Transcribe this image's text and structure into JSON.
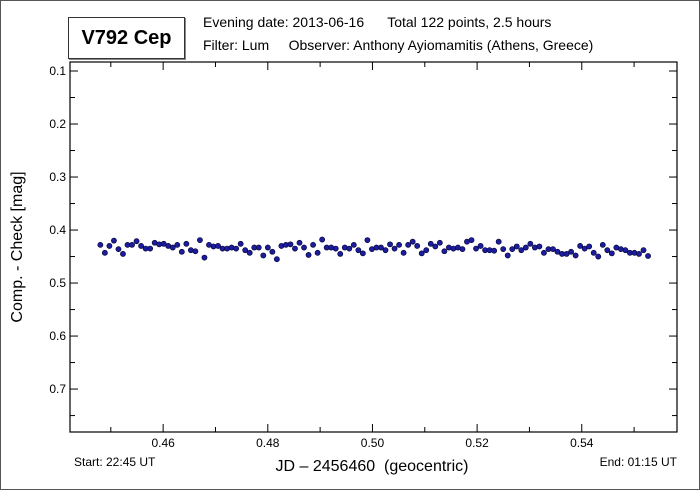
{
  "header": {
    "star_name": "V792 Cep",
    "line1": "Evening date: 2013-06-16      Total 122 points, 2.5 hours",
    "line2": "Filter: Lum     Observer: Anthony Ayiomamitis (Athens, Greece)",
    "start": "Start: 22:45 UT",
    "end": "End: 01:15 UT"
  },
  "colors": {
    "point": "#1c1c9c",
    "errorbar": "#e8a0a8",
    "axis": "#000000"
  },
  "chart_data": {
    "type": "scatter",
    "title": "V792 Cep",
    "xlabel": "JD – 2456460  (geocentric)",
    "ylabel": "Comp. - Check [mag]",
    "xlim": [
      0.4422,
      0.5582
    ],
    "ylim": [
      0.083,
      0.781
    ],
    "y_inverted": true,
    "grid": false,
    "x_ticks": [
      0.46,
      0.48,
      0.5,
      0.52,
      0.54
    ],
    "x_tick_labels": [
      "0.46",
      "0.48",
      "0.50",
      "0.52",
      "0.54"
    ],
    "y_ticks": [
      0.1,
      0.2,
      0.3,
      0.4,
      0.5,
      0.6,
      0.7
    ],
    "y_tick_labels": [
      "0.1",
      "0.2",
      "0.3",
      "0.4",
      "0.5",
      "0.6",
      "0.7"
    ],
    "x_start": 0.448,
    "x_step": 0.000865,
    "error": 0.005,
    "y": [
      0.428,
      0.443,
      0.43,
      0.42,
      0.436,
      0.445,
      0.428,
      0.428,
      0.421,
      0.43,
      0.435,
      0.435,
      0.424,
      0.427,
      0.426,
      0.43,
      0.433,
      0.428,
      0.441,
      0.426,
      0.438,
      0.44,
      0.419,
      0.452,
      0.428,
      0.431,
      0.43,
      0.435,
      0.435,
      0.433,
      0.435,
      0.426,
      0.438,
      0.443,
      0.433,
      0.433,
      0.448,
      0.433,
      0.441,
      0.455,
      0.43,
      0.428,
      0.427,
      0.435,
      0.424,
      0.433,
      0.447,
      0.428,
      0.443,
      0.418,
      0.433,
      0.433,
      0.435,
      0.445,
      0.433,
      0.435,
      0.428,
      0.438,
      0.444,
      0.419,
      0.436,
      0.433,
      0.433,
      0.438,
      0.427,
      0.435,
      0.428,
      0.443,
      0.428,
      0.422,
      0.43,
      0.444,
      0.438,
      0.426,
      0.431,
      0.424,
      0.44,
      0.433,
      0.435,
      0.433,
      0.436,
      0.422,
      0.419,
      0.435,
      0.43,
      0.438,
      0.438,
      0.439,
      0.422,
      0.436,
      0.448,
      0.436,
      0.431,
      0.438,
      0.433,
      0.426,
      0.433,
      0.431,
      0.443,
      0.436,
      0.436,
      0.441,
      0.445,
      0.445,
      0.441,
      0.448,
      0.43,
      0.435,
      0.431,
      0.443,
      0.45,
      0.428,
      0.438,
      0.444,
      0.433,
      0.436,
      0.438,
      0.443,
      0.443,
      0.445,
      0.438,
      0.449
    ]
  }
}
